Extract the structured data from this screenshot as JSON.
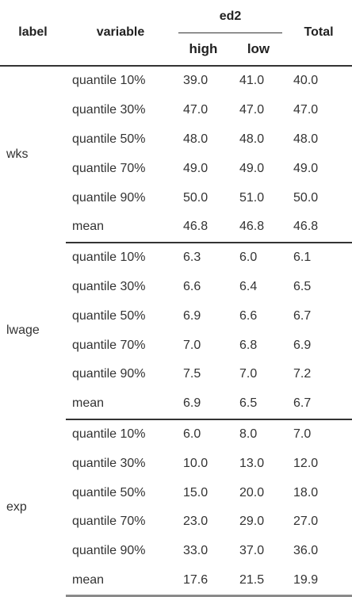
{
  "header": {
    "label": "label",
    "variable": "variable",
    "group": "ed2",
    "high": "high",
    "low": "low",
    "total": "Total"
  },
  "groups": [
    {
      "label": "wks",
      "rows": [
        {
          "variable": "quantile 10%",
          "high": "39.0",
          "low": "41.0",
          "total": "40.0"
        },
        {
          "variable": "quantile 30%",
          "high": "47.0",
          "low": "47.0",
          "total": "47.0"
        },
        {
          "variable": "quantile 50%",
          "high": "48.0",
          "low": "48.0",
          "total": "48.0"
        },
        {
          "variable": "quantile 70%",
          "high": "49.0",
          "low": "49.0",
          "total": "49.0"
        },
        {
          "variable": "quantile 90%",
          "high": "50.0",
          "low": "51.0",
          "total": "50.0"
        },
        {
          "variable": "mean",
          "high": "46.8",
          "low": "46.8",
          "total": "46.8"
        }
      ]
    },
    {
      "label": "lwage",
      "rows": [
        {
          "variable": "quantile 10%",
          "high": "6.3",
          "low": "6.0",
          "total": "6.1"
        },
        {
          "variable": "quantile 30%",
          "high": "6.6",
          "low": "6.4",
          "total": "6.5"
        },
        {
          "variable": "quantile 50%",
          "high": "6.9",
          "low": "6.6",
          "total": "6.7"
        },
        {
          "variable": "quantile 70%",
          "high": "7.0",
          "low": "6.8",
          "total": "6.9"
        },
        {
          "variable": "quantile 90%",
          "high": "7.5",
          "low": "7.0",
          "total": "7.2"
        },
        {
          "variable": "mean",
          "high": "6.9",
          "low": "6.5",
          "total": "6.7"
        }
      ]
    },
    {
      "label": "exp",
      "rows": [
        {
          "variable": "quantile 10%",
          "high": "6.0",
          "low": "8.0",
          "total": "7.0"
        },
        {
          "variable": "quantile 30%",
          "high": "10.0",
          "low": "13.0",
          "total": "12.0"
        },
        {
          "variable": "quantile 50%",
          "high": "15.0",
          "low": "20.0",
          "total": "18.0"
        },
        {
          "variable": "quantile 70%",
          "high": "23.0",
          "low": "29.0",
          "total": "27.0"
        },
        {
          "variable": "quantile 90%",
          "high": "33.0",
          "low": "37.0",
          "total": "36.0"
        },
        {
          "variable": "mean",
          "high": "17.6",
          "low": "21.5",
          "total": "19.9"
        }
      ]
    }
  ]
}
